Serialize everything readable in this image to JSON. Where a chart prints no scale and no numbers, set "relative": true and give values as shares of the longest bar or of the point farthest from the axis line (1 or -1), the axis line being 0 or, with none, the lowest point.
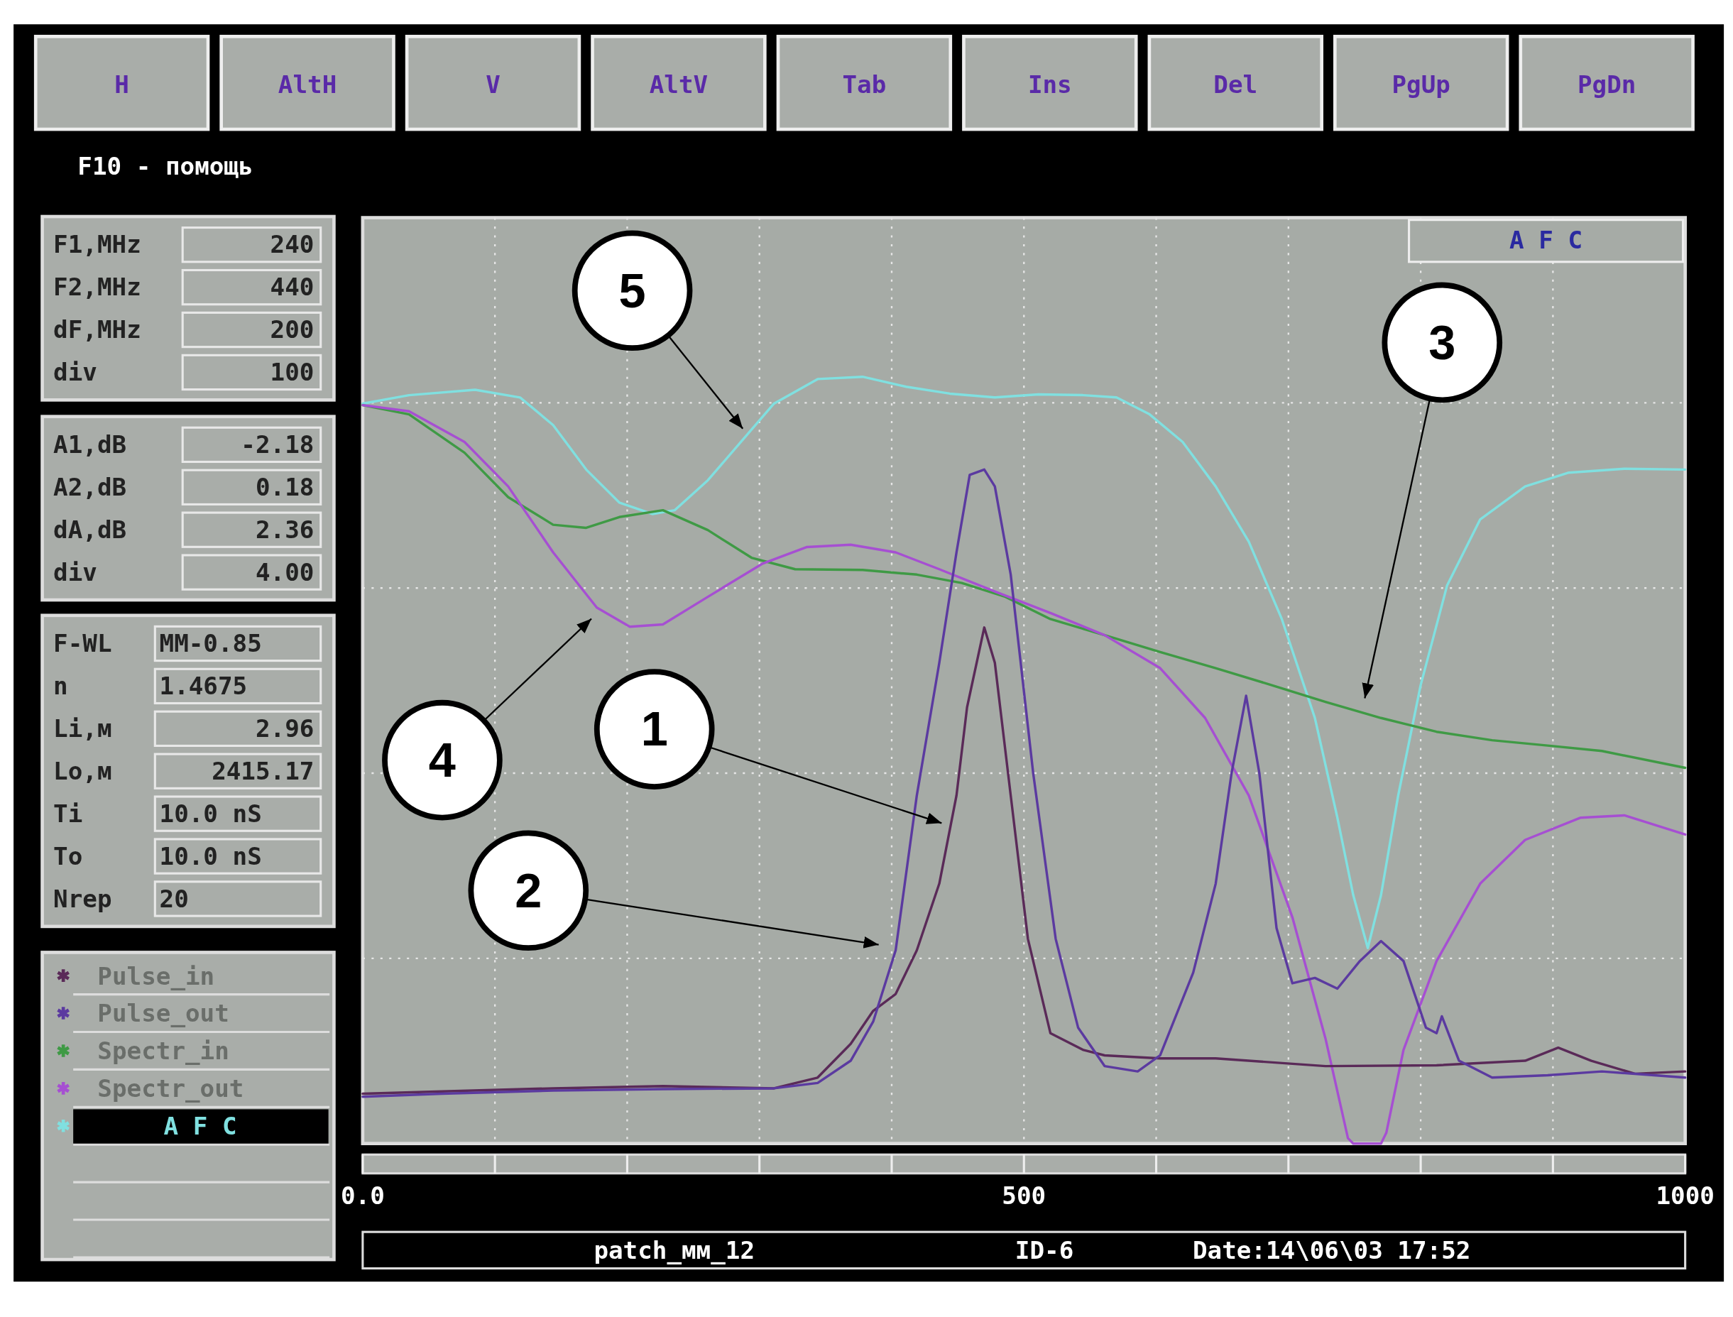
{
  "chart_data": {
    "type": "line",
    "title": "A F C",
    "relative": true,
    "grid": true,
    "legend": "left",
    "xlim": [
      0,
      1000
    ],
    "xticks": [
      {
        "value": 0,
        "label": "0.0"
      },
      {
        "value": 100,
        "label": null
      },
      {
        "value": 200,
        "label": null
      },
      {
        "value": 300,
        "label": null
      },
      {
        "value": 400,
        "label": null
      },
      500,
      {
        "value": 600,
        "label": null
      },
      {
        "value": 700,
        "label": null
      },
      {
        "value": 800,
        "label": null
      },
      {
        "value": 900,
        "label": null
      },
      1000
    ],
    "series": [
      {
        "name": "A F C",
        "color": "#80e0e0",
        "x": [
          0,
          35,
          85,
          119,
          144,
          169,
          194,
          219,
          236,
          261,
          286,
          311,
          344,
          378,
          411,
          444,
          478,
          511,
          545,
          570,
          595,
          620,
          645,
          670,
          695,
          720,
          737,
          749,
          760,
          770,
          783,
          800,
          820,
          845,
          879,
          912,
          954,
          1000
        ],
        "values": [
          0.965,
          0.976,
          0.983,
          0.973,
          0.937,
          0.879,
          0.836,
          0.821,
          0.826,
          0.865,
          0.915,
          0.965,
          0.997,
          1.0,
          0.987,
          0.978,
          0.973,
          0.977,
          0.976,
          0.973,
          0.951,
          0.915,
          0.857,
          0.785,
          0.684,
          0.555,
          0.425,
          0.324,
          0.255,
          0.324,
          0.454,
          0.598,
          0.728,
          0.814,
          0.857,
          0.875,
          0.88,
          0.879
        ]
      },
      {
        "name": "Spectr_in",
        "color": "#3f9a45",
        "x": [
          0,
          35,
          77,
          110,
          144,
          169,
          194,
          227,
          261,
          294,
          327,
          378,
          419,
          453,
          486,
          520,
          561,
          603,
          645,
          687,
          728,
          770,
          812,
          854,
          896,
          937,
          1000
        ],
        "values": [
          0.963,
          0.951,
          0.901,
          0.843,
          0.807,
          0.803,
          0.817,
          0.826,
          0.8,
          0.764,
          0.749,
          0.748,
          0.742,
          0.731,
          0.713,
          0.684,
          0.663,
          0.641,
          0.62,
          0.598,
          0.576,
          0.555,
          0.537,
          0.526,
          0.519,
          0.512,
          0.49
        ]
      },
      {
        "name": "Spectr_out",
        "color": "#a64fd2",
        "x": [
          0,
          35,
          77,
          110,
          144,
          177,
          202,
          227,
          261,
          302,
          336,
          369,
          403,
          436,
          478,
          520,
          561,
          603,
          637,
          670,
          703,
          728,
          745,
          749,
          770,
          774,
          787,
          812,
          845,
          879,
          921,
          954,
          1000
        ],
        "values": [
          0.963,
          0.955,
          0.915,
          0.857,
          0.771,
          0.699,
          0.674,
          0.677,
          0.713,
          0.756,
          0.778,
          0.781,
          0.771,
          0.749,
          0.72,
          0.692,
          0.663,
          0.62,
          0.555,
          0.454,
          0.295,
          0.137,
          0.007,
          0,
          0,
          0.014,
          0.122,
          0.238,
          0.339,
          0.396,
          0.425,
          0.428,
          0.403
        ]
      },
      {
        "name": "Pulse_in",
        "color": "#5a2a58",
        "x": [
          0,
          60,
          144,
          227,
          311,
          344,
          369,
          386,
          403,
          419,
          436,
          449,
          457,
          470,
          478,
          490,
          503,
          520,
          545,
          561,
          603,
          645,
          728,
          812,
          879,
          904,
          929,
          962,
          1000
        ],
        "values": [
          0.065,
          0.068,
          0.072,
          0.075,
          0.072,
          0.086,
          0.13,
          0.173,
          0.195,
          0.252,
          0.339,
          0.454,
          0.569,
          0.673,
          0.627,
          0.454,
          0.267,
          0.144,
          0.122,
          0.115,
          0.111,
          0.111,
          0.101,
          0.102,
          0.108,
          0.125,
          0.108,
          0.091,
          0.094
        ]
      },
      {
        "name": "Pulse_out",
        "color": "#5b3aa0",
        "x": [
          0,
          60,
          144,
          227,
          311,
          344,
          369,
          386,
          403,
          419,
          436,
          449,
          459,
          470,
          478,
          490,
          507,
          524,
          541,
          561,
          586,
          603,
          628,
          645,
          657,
          668,
          678,
          691,
          703,
          720,
          737,
          754,
          770,
          787,
          804,
          812,
          816,
          829,
          854,
          896,
          937,
          1000
        ],
        "values": [
          0.061,
          0.065,
          0.069,
          0.071,
          0.072,
          0.079,
          0.108,
          0.159,
          0.252,
          0.454,
          0.627,
          0.771,
          0.872,
          0.879,
          0.857,
          0.742,
          0.483,
          0.267,
          0.151,
          0.101,
          0.094,
          0.115,
          0.223,
          0.339,
          0.483,
          0.584,
          0.483,
          0.281,
          0.209,
          0.216,
          0.202,
          0.238,
          0.264,
          0.238,
          0.151,
          0.144,
          0.166,
          0.108,
          0.086,
          0.089,
          0.094,
          0.086
        ]
      }
    ],
    "annotations": [
      "1",
      "2",
      "3",
      "4",
      "5",
      "H",
      "AltH",
      "V",
      "AltV",
      "Tab",
      "Ins",
      "Del",
      "PgUp",
      "PgDn",
      "F10 - помощь",
      "F1,MHz",
      "240",
      "F2,MHz",
      "440",
      "dF,MHz",
      "200",
      "div",
      "100",
      "A1,dB",
      "-2.18",
      "A2,dB",
      "0.18",
      "dA,dB",
      "2.36",
      "div",
      "4.00",
      "F-WL",
      "MM-0.85",
      "n",
      "1.4675",
      "Li,м",
      "2.96",
      "Lo,м",
      "2415.17",
      "Ti",
      "10.0 nS",
      "To",
      "10.0 nS",
      "Nrep",
      "20",
      "patch_мм_12",
      "ID-6",
      "Date:14\\06\\03 17:52"
    ]
  }
}
